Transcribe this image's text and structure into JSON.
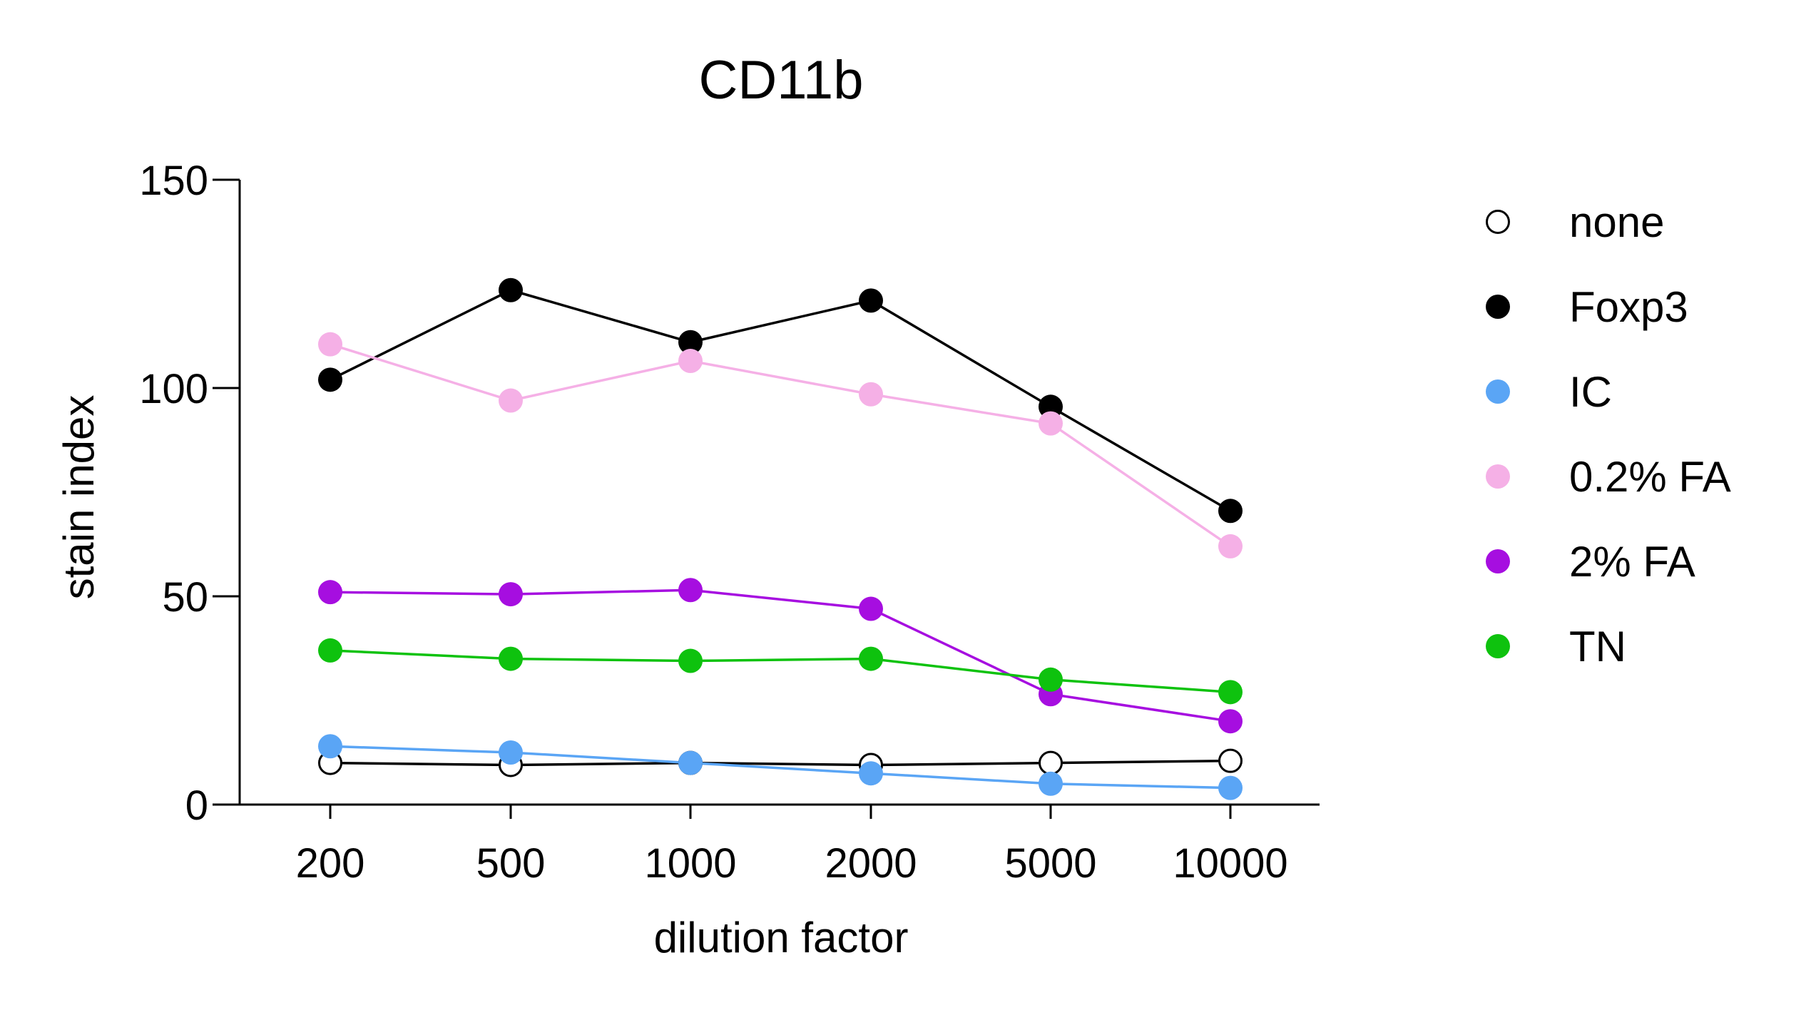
{
  "chart_data": {
    "type": "line",
    "title": "CD11b",
    "xlabel": "dilution factor",
    "ylabel": "stain index",
    "categories": [
      "200",
      "500",
      "1000",
      "2000",
      "5000",
      "10000"
    ],
    "ylim": [
      0,
      150
    ],
    "yticks": [
      "0",
      "50",
      "100",
      "150"
    ],
    "grid": false,
    "legend_position": "right",
    "series": [
      {
        "name": "none",
        "values": [
          10,
          9.5,
          10,
          9.5,
          10,
          10.5
        ],
        "marker": "open",
        "color": "#000000",
        "line_color": "#000000"
      },
      {
        "name": "Foxp3",
        "values": [
          102,
          123.5,
          111,
          121,
          95.5,
          70.5
        ],
        "marker": "filled",
        "color": "#000000",
        "line_color": "#000000"
      },
      {
        "name": "IC",
        "values": [
          14,
          12.5,
          10,
          7.5,
          5,
          4
        ],
        "marker": "filled",
        "color": "#5aa5f5",
        "line_color": "#5aa5f5"
      },
      {
        "name": "0.2% FA",
        "values": [
          110.5,
          97,
          106.5,
          98.5,
          91.5,
          62
        ],
        "marker": "filled",
        "color": "#f5b0e6",
        "line_color": "#f5b0e6"
      },
      {
        "name": "2% FA",
        "values": [
          51,
          50.5,
          51.5,
          47,
          26.5,
          20
        ],
        "marker": "filled",
        "color": "#a60ee0",
        "line_color": "#a60ee0"
      },
      {
        "name": "TN",
        "values": [
          37,
          35,
          34.5,
          35,
          30,
          27
        ],
        "marker": "filled",
        "color": "#0ec20e",
        "line_color": "#0ec20e"
      }
    ]
  }
}
